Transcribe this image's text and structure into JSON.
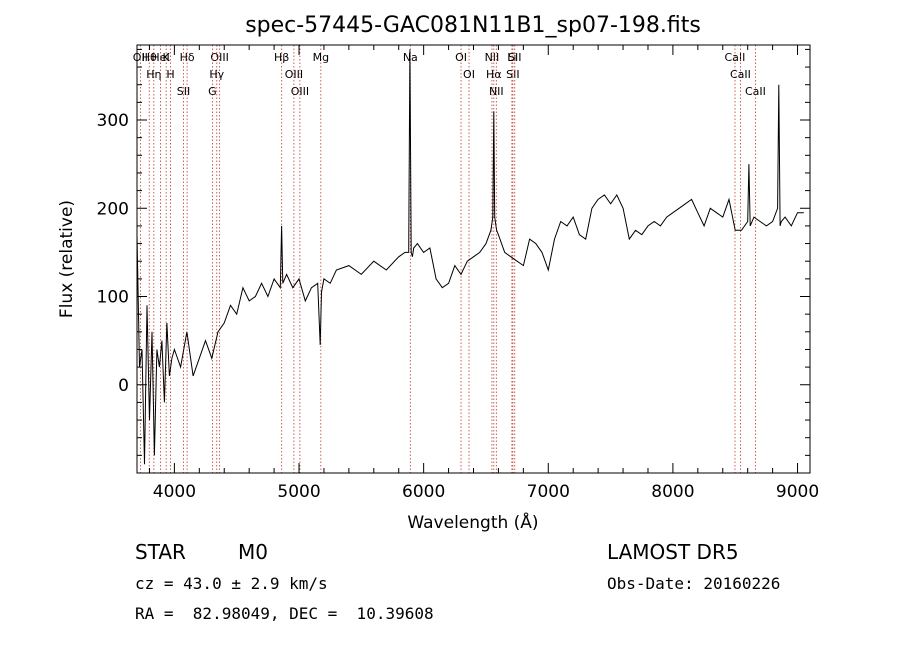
{
  "chart_data": {
    "type": "line",
    "title": "spec-57445-GAC081N11B1_sp07-198.fits",
    "xlabel": "Wavelength (Å)",
    "ylabel": "Flux (relative)",
    "xlim": [
      3700,
      9100
    ],
    "ylim": [
      -100,
      385
    ],
    "xticks": [
      4000,
      5000,
      6000,
      7000,
      8000,
      9000
    ],
    "yticks": [
      0,
      100,
      200,
      300
    ],
    "grid": false,
    "series": [
      {
        "x": [
          3700,
          3720,
          3740,
          3760,
          3780,
          3800,
          3820,
          3840,
          3860,
          3880,
          3900,
          3920,
          3940,
          3960,
          3980,
          4000,
          4050,
          4100,
          4150,
          4200,
          4250,
          4300,
          4350,
          4400,
          4450,
          4500,
          4550,
          4600,
          4650,
          4700,
          4750,
          4800,
          4850,
          4860,
          4870,
          4900,
          4950,
          5000,
          5050,
          5100,
          5150,
          5170,
          5180,
          5200,
          5250,
          5300,
          5400,
          5500,
          5600,
          5700,
          5800,
          5850,
          5880,
          5890,
          5900,
          5910,
          5920,
          5950,
          6000,
          6050,
          6100,
          6150,
          6200,
          6250,
          6300,
          6350,
          6400,
          6450,
          6500,
          6540,
          6555,
          6563,
          6570,
          6585,
          6600,
          6650,
          6700,
          6750,
          6800,
          6850,
          6900,
          6950,
          7000,
          7050,
          7100,
          7150,
          7200,
          7250,
          7300,
          7350,
          7400,
          7450,
          7500,
          7550,
          7600,
          7650,
          7700,
          7750,
          7800,
          7850,
          7900,
          7950,
          8000,
          8050,
          8100,
          8150,
          8200,
          8250,
          8300,
          8350,
          8400,
          8450,
          8500,
          8550,
          8600,
          8610,
          8620,
          8650,
          8700,
          8750,
          8800,
          8840,
          8850,
          8860,
          8870,
          8900,
          8950,
          9000,
          9050
        ],
        "values": [
          170,
          20,
          40,
          -90,
          90,
          -40,
          60,
          -80,
          40,
          20,
          50,
          -20,
          70,
          10,
          30,
          40,
          20,
          60,
          10,
          30,
          50,
          30,
          60,
          70,
          90,
          80,
          110,
          95,
          100,
          115,
          100,
          120,
          110,
          180,
          115,
          125,
          110,
          120,
          95,
          110,
          115,
          45,
          105,
          120,
          115,
          130,
          135,
          125,
          140,
          130,
          145,
          150,
          150,
          380,
          150,
          145,
          155,
          160,
          150,
          155,
          120,
          110,
          115,
          135,
          125,
          140,
          145,
          150,
          160,
          175,
          190,
          310,
          190,
          175,
          170,
          150,
          145,
          140,
          135,
          165,
          160,
          150,
          130,
          165,
          185,
          180,
          190,
          170,
          165,
          200,
          210,
          215,
          205,
          215,
          200,
          165,
          175,
          170,
          180,
          185,
          180,
          190,
          195,
          200,
          205,
          210,
          195,
          180,
          200,
          195,
          190,
          210,
          175,
          175,
          185,
          250,
          180,
          190,
          185,
          180,
          185,
          200,
          340,
          180,
          185,
          190,
          180,
          195,
          195
        ]
      }
    ],
    "lines": [
      {
        "label": "Hθ",
        "x": 3798
      },
      {
        "label": "Hη",
        "x": 3835
      },
      {
        "label": "K",
        "x": 3934
      },
      {
        "label": "H",
        "x": 3969
      },
      {
        "label": "Hδ",
        "x": 4102
      },
      {
        "label": "SII",
        "x": 4073
      },
      {
        "label": "HeI",
        "x": 3889
      },
      {
        "label": "OII",
        "x": 3727
      },
      {
        "label": "OIII",
        "x": 4363
      },
      {
        "label": "Hγ",
        "x": 4340
      },
      {
        "label": "G",
        "x": 4305
      },
      {
        "label": "Hβ",
        "x": 4861
      },
      {
        "label": "OIII",
        "x": 4959
      },
      {
        "label": "OIII",
        "x": 5007
      },
      {
        "label": "Mg",
        "x": 5175
      },
      {
        "label": "Na",
        "x": 5893
      },
      {
        "label": "OI",
        "x": 6300
      },
      {
        "label": "OI",
        "x": 6364
      },
      {
        "label": "NII",
        "x": 6548
      },
      {
        "label": "Hα",
        "x": 6563
      },
      {
        "label": "NII",
        "x": 6583
      },
      {
        "label": "Li",
        "x": 6708
      },
      {
        "label": "SII",
        "x": 6716
      },
      {
        "label": "SII",
        "x": 6731
      },
      {
        "label": "CaII",
        "x": 8498
      },
      {
        "label": "CaII",
        "x": 8542
      },
      {
        "label": "CaII",
        "x": 8662
      }
    ]
  },
  "info": {
    "class": "STAR",
    "subclass": "M0",
    "cz": "cz = 43.0 ± 2.9 km/s",
    "radec": "RA =  82.98049, DEC =  10.39608",
    "survey": "LAMOST DR5",
    "obsdate": "Obs-Date: 20160226"
  }
}
